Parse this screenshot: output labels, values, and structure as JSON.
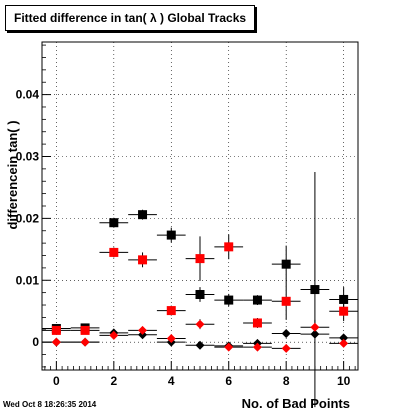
{
  "title": "Fitted difference in tan( λ )  Global Tracks",
  "timestamp": "Wed Oct  8 18:26:35 2014",
  "chart_data": {
    "type": "scatter",
    "xlabel": "No. of Bad Points",
    "ylabel": "differencein tan( )",
    "xlim": [
      -0.5,
      10.5
    ],
    "ylim": [
      -0.0045,
      0.0485
    ],
    "xticks": [
      0,
      2,
      4,
      6,
      8,
      10
    ],
    "yticks": [
      0,
      0.01,
      0.02,
      0.03,
      0.04
    ],
    "ytick_labels": [
      "0",
      "0.01",
      "0.02",
      "0.03",
      "0.04"
    ],
    "grid": true,
    "series": [
      {
        "marker": "square",
        "color": "#000000",
        "points": [
          {
            "x": 0,
            "y": 0.0022,
            "err": 0.0004
          },
          {
            "x": 1,
            "y": 0.0023,
            "err": 0.0004
          },
          {
            "x": 2,
            "y": 0.0193,
            "err": 0.0008
          },
          {
            "x": 3,
            "y": 0.0206,
            "err": 0.0008
          },
          {
            "x": 4,
            "y": 0.0173,
            "err": 0.0012
          },
          {
            "x": 5,
            "y": 0.0077,
            "err": 0.0012
          },
          {
            "x": 6,
            "y": 0.0068,
            "err": 0.001
          },
          {
            "x": 7,
            "y": 0.0068,
            "err": 0.0008
          },
          {
            "x": 8,
            "y": 0.0126,
            "err": 0.003
          },
          {
            "x": 9,
            "y": 0.0085,
            "err": 0.019
          },
          {
            "x": 10,
            "y": 0.0069,
            "err": 0.002
          }
        ]
      },
      {
        "marker": "square",
        "color": "#ff0000",
        "points": [
          {
            "x": 0,
            "y": 0.0019,
            "err": 0.0004
          },
          {
            "x": 1,
            "y": 0.0019,
            "err": 0.0004
          },
          {
            "x": 2,
            "y": 0.0145,
            "err": 0.0008
          },
          {
            "x": 3,
            "y": 0.0133,
            "err": 0.0012
          },
          {
            "x": 4,
            "y": 0.0051,
            "err": 0.0008
          },
          {
            "x": 5,
            "y": 0.0135,
            "err": 0.0036
          },
          {
            "x": 6,
            "y": 0.0154,
            "err": 0.002
          },
          {
            "x": 7,
            "y": 0.0031,
            "err": 0.0008
          },
          {
            "x": 8,
            "y": 0.0066,
            "err": 0.003
          },
          {
            "x": 10,
            "y": 0.005,
            "err": 0.0016
          }
        ]
      },
      {
        "marker": "diamond",
        "color": "#000000",
        "points": [
          {
            "x": 0,
            "y": 0.0,
            "err": 0.0003
          },
          {
            "x": 1,
            "y": 0.0,
            "err": 0.0003
          },
          {
            "x": 2,
            "y": 0.0015,
            "err": 0.0004
          },
          {
            "x": 3,
            "y": 0.0012,
            "err": 0.0006
          },
          {
            "x": 4,
            "y": 0.0,
            "err": 0.0006
          },
          {
            "x": 5,
            "y": -0.0005,
            "err": 0.0004
          },
          {
            "x": 6,
            "y": -0.0006,
            "err": 0.0004
          },
          {
            "x": 7,
            "y": -0.0002,
            "err": 0.0004
          },
          {
            "x": 8,
            "y": 0.0014,
            "err": 0.0006
          },
          {
            "x": 9,
            "y": 0.0013,
            "err": 0.0006
          },
          {
            "x": 10,
            "y": 0.0007,
            "err": 0.0004
          }
        ]
      },
      {
        "marker": "diamond",
        "color": "#ff0000",
        "points": [
          {
            "x": 0,
            "y": 0.0,
            "err": 0.0003
          },
          {
            "x": 1,
            "y": 0.0,
            "err": 0.0003
          },
          {
            "x": 2,
            "y": 0.0011,
            "err": 0.0004
          },
          {
            "x": 3,
            "y": 0.0019,
            "err": 0.0004
          },
          {
            "x": 4,
            "y": 0.0006,
            "err": 0.0004
          },
          {
            "x": 5,
            "y": 0.0029,
            "err": 0.0008
          },
          {
            "x": 6,
            "y": -0.0008,
            "err": 0.0004
          },
          {
            "x": 7,
            "y": -0.0008,
            "err": 0.0004
          },
          {
            "x": 8,
            "y": -0.001,
            "err": 0.0004
          },
          {
            "x": 9,
            "y": 0.0024,
            "err": 0.0012
          },
          {
            "x": 10,
            "y": -0.0002,
            "err": 0.0004
          }
        ]
      }
    ]
  }
}
